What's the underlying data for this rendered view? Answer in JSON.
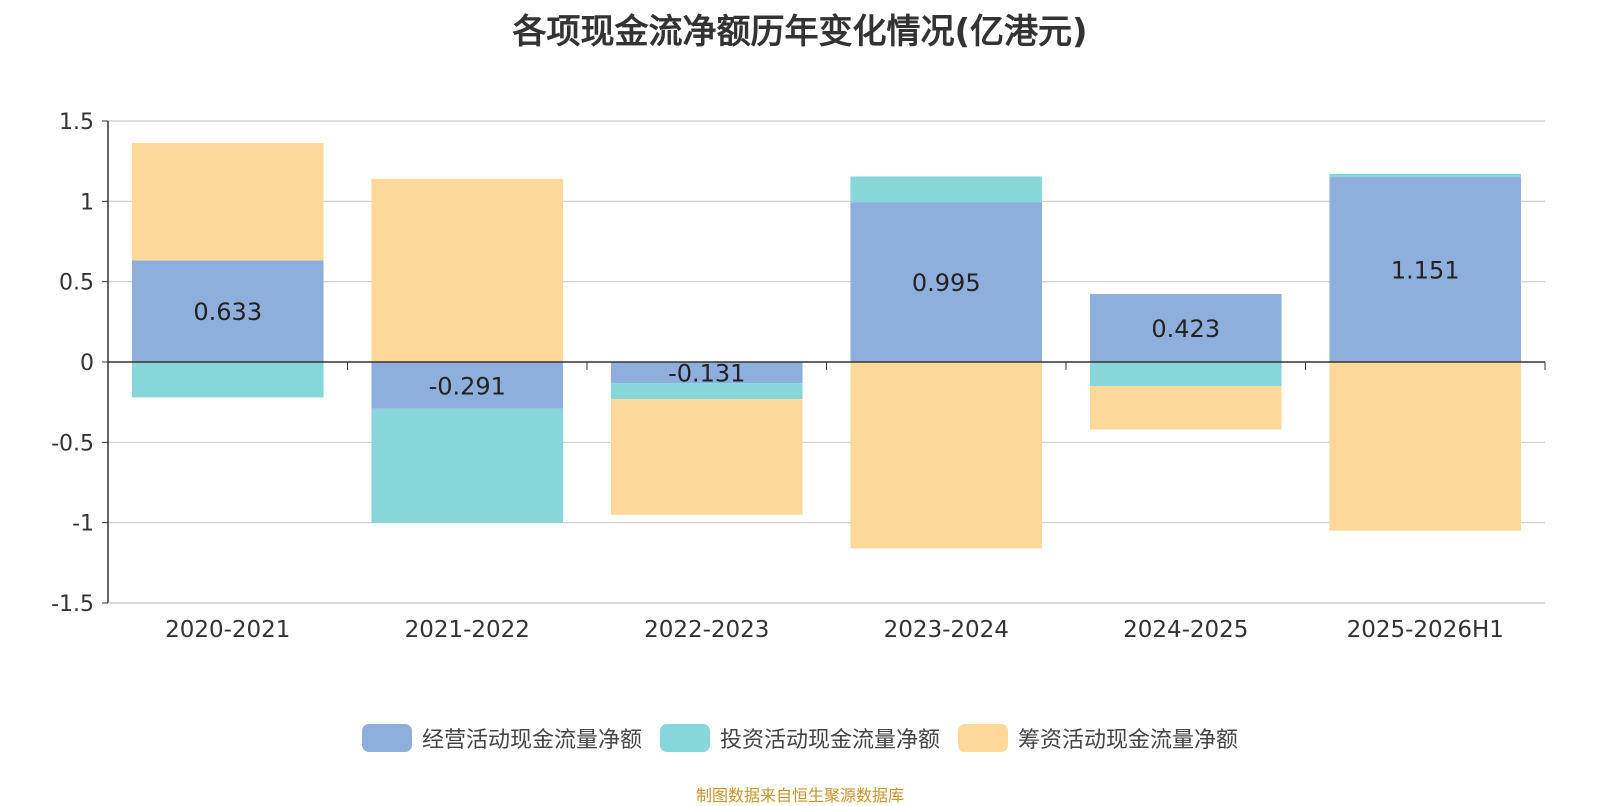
{
  "title": "各项现金流净额历年变化情况(亿港元)",
  "source": "制图数据来自恒生聚源数据库",
  "colors": {
    "operating": "#8eafdc",
    "investing": "#87d6da",
    "financing": "#fed899",
    "grid": "#cccccc",
    "axis": "#333333",
    "text": "#333333"
  },
  "chart_data": {
    "type": "bar",
    "stacked": true,
    "categories": [
      "2020-2021",
      "2021-2022",
      "2022-2023",
      "2023-2024",
      "2024-2025",
      "2025-2026H1"
    ],
    "ylim": [
      -1.5,
      1.5
    ],
    "yticks": [
      1.5,
      1,
      0.5,
      0,
      -0.5,
      -1,
      -1.5
    ],
    "ytick_labels": [
      "1.5",
      "1",
      "0.5",
      "0",
      "-0.5",
      "-1",
      "-1.5"
    ],
    "grid": true,
    "legend_position": "bottom",
    "series": [
      {
        "name": "经营活动现金流量净额",
        "key": "operating",
        "values": [
          0.633,
          -0.291,
          -0.131,
          0.995,
          0.423,
          1.151
        ],
        "labels": [
          "0.633",
          "-0.291",
          "-0.131",
          "0.995",
          "0.423",
          "1.151"
        ]
      },
      {
        "name": "投资活动现金流量净额",
        "key": "investing",
        "values": [
          -0.22,
          -0.71,
          -0.1,
          0.16,
          -0.15,
          0.02
        ]
      },
      {
        "name": "筹资活动现金流量净额",
        "key": "financing",
        "values": [
          0.73,
          1.14,
          -0.72,
          -1.16,
          -0.27,
          -1.05
        ]
      }
    ]
  }
}
